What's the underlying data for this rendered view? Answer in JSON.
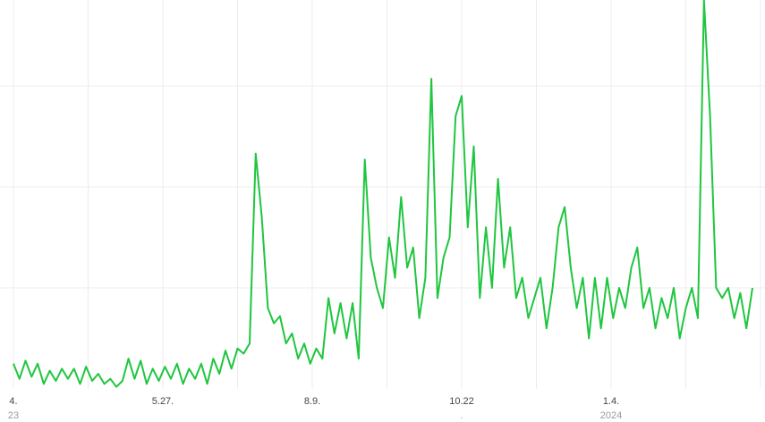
{
  "chart_data": {
    "type": "line",
    "x": [
      0,
      3,
      6,
      9,
      12,
      15,
      18,
      21,
      24,
      27,
      30,
      33,
      36,
      39,
      42,
      45,
      48,
      51,
      54,
      57,
      60,
      63,
      66,
      69,
      72,
      75,
      78,
      81,
      84,
      87,
      90,
      93,
      96,
      99,
      102,
      105,
      108,
      111,
      114,
      117,
      120,
      123,
      126,
      129,
      132,
      135,
      138,
      141,
      144,
      147,
      150,
      153,
      156,
      159,
      162,
      165,
      168,
      171,
      174,
      177,
      180,
      183,
      186,
      189,
      192,
      195,
      198,
      201,
      204,
      207,
      210,
      213,
      216,
      219,
      222,
      225,
      228,
      231,
      234,
      237,
      240,
      243,
      246,
      249,
      252,
      255,
      258,
      261,
      264,
      267,
      270,
      273,
      276,
      279,
      282,
      285,
      288,
      291,
      294,
      297,
      300,
      303,
      306,
      309,
      312,
      315,
      318,
      321,
      324,
      327,
      330,
      333,
      336,
      339,
      342,
      345,
      348,
      351,
      354,
      357,
      360,
      363,
      366
    ],
    "series": [
      {
        "color": "#1fc63f",
        "values": [
          0.25,
          0.1,
          0.28,
          0.12,
          0.25,
          0.05,
          0.18,
          0.08,
          0.2,
          0.1,
          0.2,
          0.05,
          0.22,
          0.08,
          0.15,
          0.05,
          0.1,
          0.02,
          0.08,
          0.3,
          0.1,
          0.28,
          0.05,
          0.2,
          0.08,
          0.22,
          0.1,
          0.25,
          0.05,
          0.2,
          0.1,
          0.25,
          0.05,
          0.3,
          0.15,
          0.38,
          0.2,
          0.4,
          0.35,
          0.45,
          2.33,
          1.7,
          0.8,
          0.65,
          0.72,
          0.45,
          0.55,
          0.3,
          0.45,
          0.25,
          0.4,
          0.3,
          0.9,
          0.55,
          0.85,
          0.5,
          0.85,
          0.3,
          2.27,
          1.3,
          1.0,
          0.8,
          1.5,
          1.1,
          1.9,
          1.2,
          1.4,
          0.7,
          1.1,
          3.07,
          0.9,
          1.3,
          1.5,
          2.7,
          2.9,
          1.6,
          2.4,
          0.9,
          1.6,
          1.0,
          2.08,
          1.2,
          1.6,
          0.9,
          1.1,
          0.7,
          0.9,
          1.1,
          0.6,
          1.0,
          1.6,
          1.8,
          1.2,
          0.8,
          1.1,
          0.5,
          1.1,
          0.6,
          1.1,
          0.7,
          1.0,
          0.8,
          1.2,
          1.4,
          0.8,
          1.0,
          0.6,
          0.9,
          0.7,
          1.0,
          0.5,
          0.8,
          1.0,
          0.7,
          3.85,
          2.7,
          1.0,
          0.9,
          1.0,
          0.7,
          0.95,
          0.6,
          1.0
        ]
      }
    ],
    "xlim": [
      0,
      370
    ],
    "xticks": [
      {
        "value": 0,
        "label": "4."
      },
      {
        "value": 37,
        "label": null
      },
      {
        "value": 74,
        "label": "5.27."
      },
      {
        "value": 111,
        "label": null
      },
      {
        "value": 148,
        "label": "8.9."
      },
      {
        "value": 185,
        "label": null
      },
      {
        "value": 222,
        "label": "10.22"
      },
      {
        "value": 259,
        "label": null
      },
      {
        "value": 296,
        "label": "1.4."
      },
      {
        "value": 333,
        "label": null
      },
      {
        "value": 370,
        "label": null
      }
    ],
    "xticks_second_row": [
      {
        "value": 0,
        "label": "23"
      },
      {
        "value": 222,
        "label": "."
      },
      {
        "value": 296,
        "label": "2024"
      }
    ],
    "ylim": [
      0,
      3.85
    ],
    "yticks": [
      1,
      2,
      3
    ],
    "grid": true
  }
}
